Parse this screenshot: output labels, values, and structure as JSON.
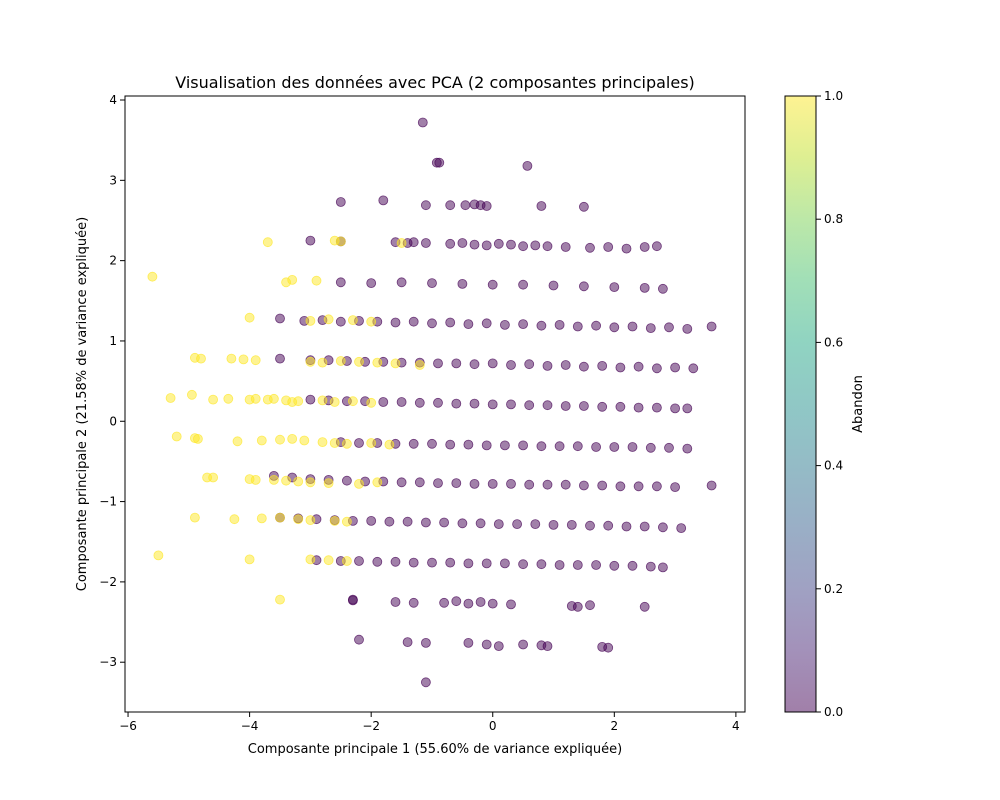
{
  "chart_data": {
    "type": "scatter",
    "title": "Visualisation des données avec PCA (2 composantes principales)",
    "xlabel": "Composante principale 1 (55.60% de variance expliquée)",
    "ylabel": "Composante principale 2 (21.58% de variance expliquée)",
    "xlim": [
      -6.05,
      4.15
    ],
    "ylim": [
      -3.62,
      4.05
    ],
    "x_ticks": [
      -6,
      -4,
      -2,
      0,
      2,
      4
    ],
    "y_ticks": [
      -3,
      -2,
      -1,
      0,
      1,
      2,
      3,
      4
    ],
    "x_tick_labels": [
      "−6",
      "−4",
      "−2",
      "0",
      "2",
      "4"
    ],
    "y_tick_labels": [
      "−3",
      "−2",
      "−1",
      "0",
      "1",
      "2",
      "3",
      "4"
    ],
    "grid": false,
    "colorbar": {
      "label": "Abandon",
      "range": [
        0.0,
        1.0
      ],
      "ticks": [
        0.0,
        0.2,
        0.4,
        0.6,
        0.8,
        1.0
      ],
      "tick_labels": [
        "0.0",
        "0.2",
        "0.4",
        "0.6",
        "0.8",
        "1.0"
      ],
      "colormap": "viridis"
    },
    "colors": {
      "class0": "#440154",
      "class1": "#fde725"
    },
    "point_alpha": 0.5,
    "series": [
      {
        "value": 0,
        "x": [
          -1.15,
          -0.92,
          -0.88,
          0.57,
          -2.5,
          -1.8,
          -1.1,
          -0.7,
          -0.45,
          -0.3,
          -0.2,
          -0.1,
          0.8,
          1.5,
          -3.0,
          -2.5,
          -1.6,
          -1.4,
          -1.3,
          -1.1,
          -0.7,
          -0.5,
          -0.3,
          -0.1,
          0.1,
          0.3,
          0.5,
          0.7,
          0.9,
          1.2,
          1.6,
          1.9,
          2.2,
          2.5,
          2.7,
          -2.5,
          -2.0,
          -1.5,
          -1.0,
          -0.5,
          0,
          0.5,
          1.0,
          1.5,
          2.0,
          2.5,
          2.8,
          -3.5,
          -3.1,
          -2.8,
          -2.5,
          -2.2,
          -1.9,
          -1.6,
          -1.3,
          -1.0,
          -0.7,
          -0.4,
          -0.1,
          0.2,
          0.5,
          0.8,
          1.1,
          1.4,
          1.7,
          2.0,
          2.3,
          2.6,
          2.9,
          3.2,
          3.6,
          -3.5,
          -3.0,
          -2.7,
          -2.4,
          -2.1,
          -1.8,
          -1.5,
          -1.2,
          -0.9,
          -0.6,
          -0.3,
          0,
          0.3,
          0.6,
          0.9,
          1.2,
          1.5,
          1.8,
          2.1,
          2.4,
          2.7,
          3.0,
          3.3,
          -3.0,
          -2.7,
          -2.4,
          -2.1,
          -1.8,
          -1.5,
          -1.2,
          -0.9,
          -0.6,
          -0.3,
          0,
          0.3,
          0.6,
          0.9,
          1.2,
          1.5,
          1.8,
          2.1,
          2.4,
          2.7,
          3.0,
          3.2,
          -2.5,
          -2.2,
          -1.9,
          -1.6,
          -1.3,
          -1.0,
          -0.7,
          -0.4,
          -0.1,
          0.2,
          0.5,
          0.8,
          1.1,
          1.4,
          1.7,
          2.0,
          2.3,
          2.6,
          2.9,
          3.2,
          -3.6,
          -3.3,
          -3.0,
          -2.7,
          -2.4,
          -2.1,
          -1.8,
          -1.5,
          -1.2,
          -0.9,
          -0.6,
          -0.3,
          0,
          0.3,
          0.6,
          0.9,
          1.2,
          1.5,
          1.8,
          2.1,
          2.4,
          2.7,
          3.0,
          3.6,
          -3.5,
          -3.2,
          -2.9,
          -2.6,
          -2.3,
          -2.0,
          -1.7,
          -1.4,
          -1.1,
          -0.8,
          -0.5,
          -0.2,
          0.1,
          0.4,
          0.7,
          1.0,
          1.3,
          1.6,
          1.9,
          2.2,
          2.5,
          2.8,
          3.1,
          -2.9,
          -2.5,
          -2.2,
          -1.9,
          -1.6,
          -1.3,
          -1.0,
          -0.7,
          -0.4,
          -0.1,
          0.2,
          0.5,
          0.8,
          1.1,
          1.4,
          1.7,
          2.0,
          2.3,
          2.6,
          2.8,
          -2.3,
          -2.3,
          -1.6,
          -1.3,
          -0.8,
          -0.6,
          -0.4,
          -0.2,
          0.0,
          0.3,
          1.3,
          1.4,
          1.6,
          2.5,
          -2.2,
          -1.4,
          -1.1,
          -0.4,
          -0.1,
          0.1,
          0.5,
          0.8,
          0.9,
          1.8,
          1.9,
          -1.1
        ],
        "y": [
          3.72,
          3.22,
          3.22,
          3.18,
          2.73,
          2.75,
          2.69,
          2.69,
          2.69,
          2.7,
          2.69,
          2.68,
          2.68,
          2.67,
          2.25,
          2.24,
          2.23,
          2.22,
          2.23,
          2.22,
          2.21,
          2.22,
          2.2,
          2.19,
          2.21,
          2.2,
          2.18,
          2.19,
          2.18,
          2.17,
          2.16,
          2.17,
          2.15,
          2.17,
          2.18,
          1.73,
          1.72,
          1.73,
          1.72,
          1.71,
          1.7,
          1.7,
          1.69,
          1.68,
          1.67,
          1.66,
          1.65,
          1.28,
          1.25,
          1.26,
          1.24,
          1.25,
          1.24,
          1.23,
          1.24,
          1.22,
          1.23,
          1.21,
          1.22,
          1.2,
          1.21,
          1.19,
          1.2,
          1.18,
          1.19,
          1.17,
          1.18,
          1.16,
          1.17,
          1.15,
          1.18,
          0.78,
          0.76,
          0.76,
          0.75,
          0.74,
          0.74,
          0.73,
          0.73,
          0.72,
          0.72,
          0.71,
          0.72,
          0.7,
          0.71,
          0.69,
          0.7,
          0.68,
          0.69,
          0.67,
          0.68,
          0.66,
          0.67,
          0.66,
          0.27,
          0.26,
          0.25,
          0.25,
          0.24,
          0.24,
          0.23,
          0.23,
          0.22,
          0.22,
          0.21,
          0.21,
          0.2,
          0.2,
          0.19,
          0.19,
          0.18,
          0.18,
          0.17,
          0.17,
          0.16,
          0.16,
          -0.26,
          -0.27,
          -0.27,
          -0.28,
          -0.28,
          -0.28,
          -0.29,
          -0.29,
          -0.3,
          -0.3,
          -0.3,
          -0.31,
          -0.31,
          -0.31,
          -0.32,
          -0.32,
          -0.32,
          -0.33,
          -0.33,
          -0.34,
          -0.68,
          -0.7,
          -0.72,
          -0.73,
          -0.74,
          -0.75,
          -0.75,
          -0.76,
          -0.76,
          -0.77,
          -0.77,
          -0.78,
          -0.78,
          -0.78,
          -0.79,
          -0.79,
          -0.79,
          -0.8,
          -0.8,
          -0.81,
          -0.81,
          -0.81,
          -0.82,
          -0.8,
          -1.2,
          -1.21,
          -1.22,
          -1.23,
          -1.24,
          -1.24,
          -1.25,
          -1.25,
          -1.26,
          -1.26,
          -1.27,
          -1.27,
          -1.28,
          -1.28,
          -1.28,
          -1.29,
          -1.29,
          -1.3,
          -1.3,
          -1.31,
          -1.31,
          -1.32,
          -1.33,
          -1.73,
          -1.74,
          -1.74,
          -1.75,
          -1.75,
          -1.76,
          -1.76,
          -1.76,
          -1.77,
          -1.77,
          -1.77,
          -1.78,
          -1.78,
          -1.79,
          -1.79,
          -1.79,
          -1.8,
          -1.8,
          -1.81,
          -1.82,
          -2.22,
          -2.23,
          -2.25,
          -2.26,
          -2.26,
          -2.24,
          -2.27,
          -2.25,
          -2.27,
          -2.28,
          -2.3,
          -2.31,
          -2.29,
          -2.31,
          -2.72,
          -2.75,
          -2.76,
          -2.76,
          -2.78,
          -2.8,
          -2.78,
          -2.79,
          -2.8,
          -2.81,
          -2.82,
          -3.25
        ]
      },
      {
        "value": 1,
        "x": [
          -5.6,
          -3.7,
          -3.4,
          -3.3,
          -2.9,
          -2.6,
          -2.5,
          -1.5,
          -4.0,
          -3.0,
          -2.7,
          -2.3,
          -2.0,
          -4.9,
          -4.8,
          -4.3,
          -4.1,
          -3.9,
          -3.0,
          -2.8,
          -2.5,
          -2.2,
          -1.9,
          -1.6,
          -1.2,
          -5.3,
          -4.95,
          -4.6,
          -4.35,
          -4.0,
          -3.9,
          -3.7,
          -3.6,
          -3.4,
          -3.3,
          -3.2,
          -2.8,
          -2.6,
          -2.3,
          -2.0,
          -5.2,
          -4.9,
          -4.85,
          -4.6,
          -4.2,
          -3.8,
          -3.5,
          -3.3,
          -3.1,
          -2.8,
          -2.6,
          -2.4,
          -2.0,
          -1.7,
          -4.7,
          -4.0,
          -3.9,
          -3.6,
          -3.4,
          -3.2,
          -3.0,
          -2.7,
          -2.2,
          -1.9,
          -4.9,
          -4.25,
          -3.8,
          -3.5,
          -3.2,
          -3.0,
          -2.6,
          -2.4,
          -5.5,
          -4.0,
          -3.0,
          -2.7,
          -2.4,
          -3.5
        ],
        "y": [
          1.8,
          2.23,
          1.73,
          1.76,
          1.75,
          2.25,
          2.24,
          2.22,
          1.29,
          1.25,
          1.27,
          1.26,
          1.24,
          0.79,
          0.78,
          0.78,
          0.77,
          0.76,
          0.74,
          0.73,
          0.75,
          0.74,
          0.73,
          0.72,
          0.7,
          0.29,
          0.33,
          0.27,
          0.28,
          0.27,
          0.28,
          0.27,
          0.28,
          0.26,
          0.24,
          0.25,
          0.26,
          0.24,
          0.25,
          0.23,
          -0.19,
          -0.21,
          -0.22,
          -0.7,
          -0.25,
          -0.24,
          -0.23,
          -0.22,
          -0.24,
          -0.26,
          -0.27,
          -0.28,
          -0.27,
          -0.29,
          -0.7,
          -0.72,
          -0.73,
          -0.73,
          -0.74,
          -0.75,
          -0.76,
          -0.77,
          -0.78,
          -0.76,
          -1.2,
          -1.22,
          -1.21,
          -1.2,
          -1.22,
          -1.23,
          -1.24,
          -1.25,
          -1.67,
          -1.72,
          -1.72,
          -1.73,
          -1.74,
          -2.22
        ]
      }
    ]
  }
}
